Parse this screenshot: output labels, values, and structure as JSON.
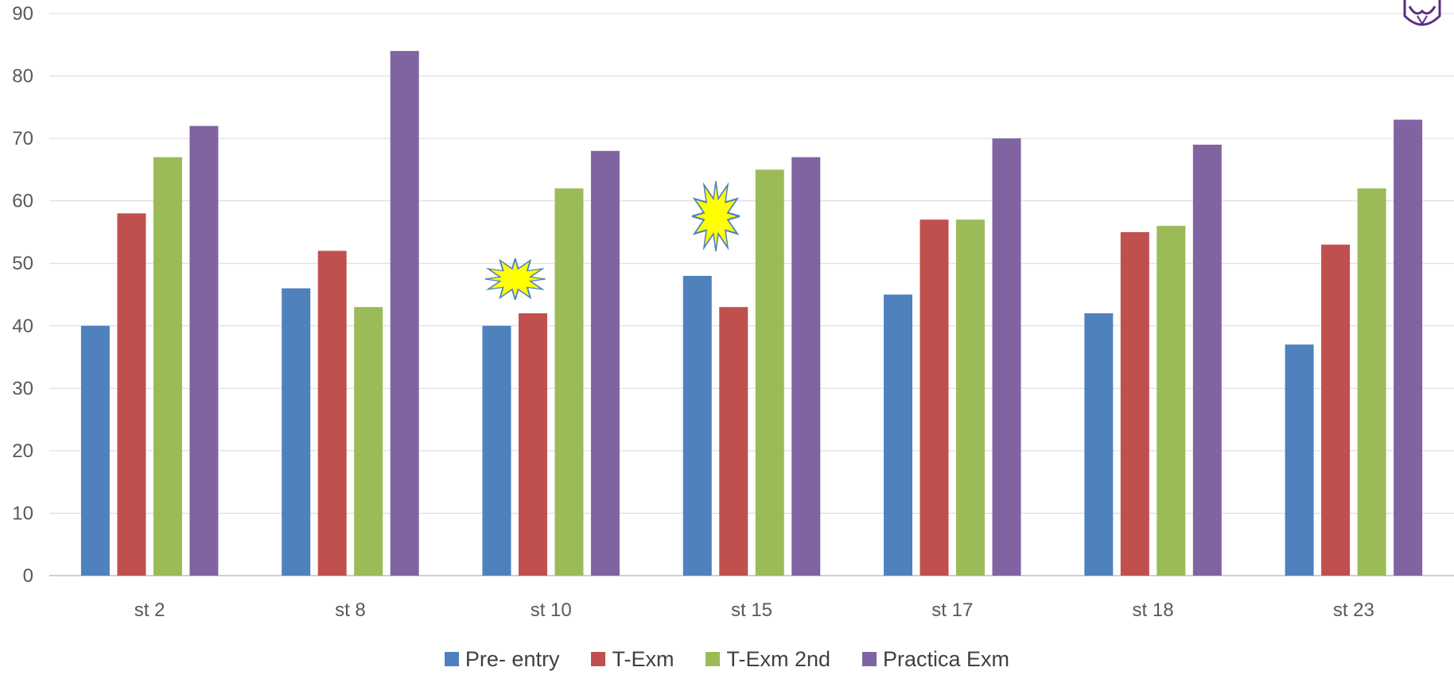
{
  "chart_data": {
    "type": "bar",
    "categories": [
      "st 2",
      "st 8",
      "st 10",
      "st 15",
      "st 17",
      "st 18",
      "st 23"
    ],
    "series": [
      {
        "name": "Pre- entry",
        "color": "#4F81BD",
        "values": [
          40,
          46,
          40,
          48,
          45,
          42,
          37
        ]
      },
      {
        "name": "T-Exm",
        "color": "#C0504D",
        "values": [
          58,
          52,
          42,
          43,
          57,
          55,
          53
        ]
      },
      {
        "name": "T-Exm 2nd",
        "color": "#9BBB59",
        "values": [
          67,
          43,
          62,
          65,
          57,
          56,
          62
        ]
      },
      {
        "name": "Practica Exm",
        "color": "#8064A2",
        "values": [
          72,
          84,
          68,
          67,
          70,
          69,
          73
        ]
      }
    ],
    "y_ticks": [
      "0",
      "10",
      "20",
      "30",
      "40",
      "50",
      "60",
      "70",
      "80",
      "90"
    ],
    "ylim": [
      0,
      90
    ],
    "grid": true,
    "legend_position": "bottom",
    "annotations": [
      {
        "type": "starburst",
        "color": "#FFFF00",
        "category": "st 10"
      },
      {
        "type": "starburst",
        "color": "#FFFF00",
        "category": "st 15"
      }
    ]
  }
}
